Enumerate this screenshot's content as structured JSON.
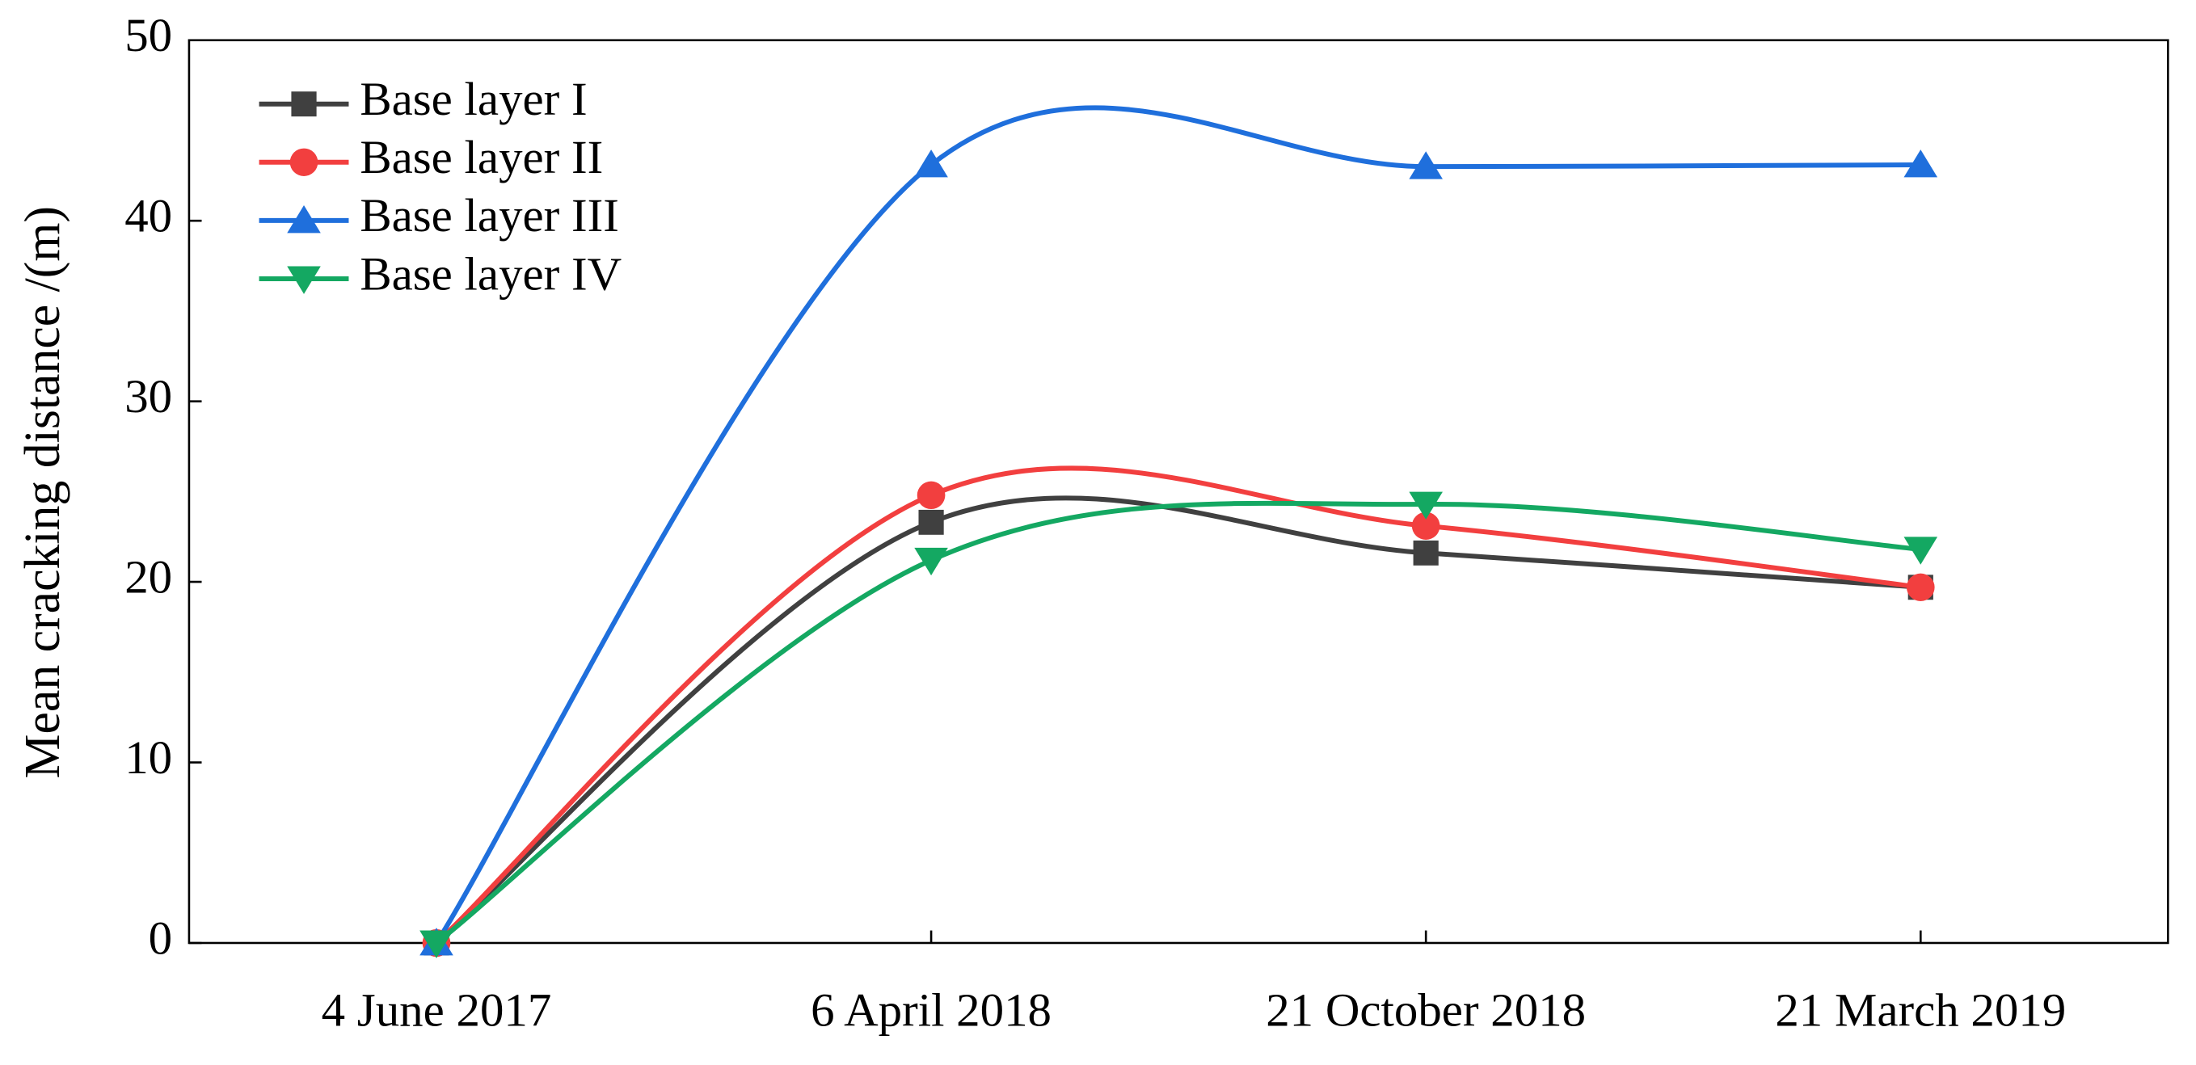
{
  "chart_data": {
    "type": "line",
    "y_label": "Mean cracking distance /(m)",
    "categories": [
      "4 June 2017",
      "6 April 2018",
      "21 October 2018",
      "21 March 2019"
    ],
    "series": [
      {
        "name": "Base layer I",
        "color": "#404040",
        "marker": "square",
        "values": [
          0,
          23.3,
          21.6,
          19.7
        ]
      },
      {
        "name": "Base layer II",
        "color": "#f23f3f",
        "marker": "circle",
        "values": [
          0,
          24.8,
          23.1,
          19.7
        ]
      },
      {
        "name": "Base layer III",
        "color": "#1f6fdc",
        "marker": "triangle-up",
        "values": [
          0,
          43.1,
          43.0,
          43.1
        ]
      },
      {
        "name": "Base layer IV",
        "color": "#14a862",
        "marker": "triangle-down",
        "values": [
          0,
          21.2,
          24.3,
          21.8
        ]
      }
    ],
    "ylim": [
      0,
      50
    ],
    "yticks": [
      0,
      10,
      20,
      30,
      40,
      50
    ],
    "smooth": true,
    "legend": "top-left"
  }
}
